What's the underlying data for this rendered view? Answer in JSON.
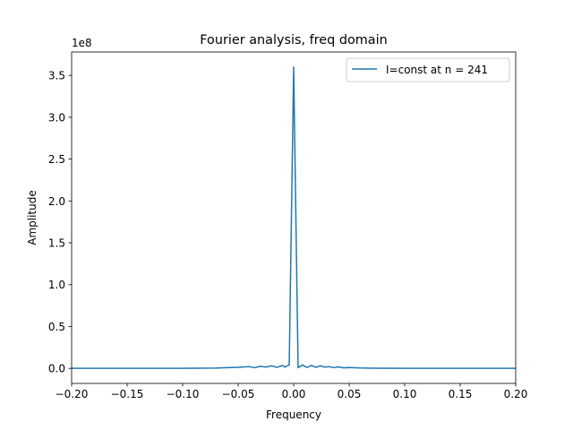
{
  "chart_data": {
    "type": "line",
    "title": "Fourier analysis, freq domain",
    "xlabel": "Frequency",
    "ylabel": "Amplitude",
    "xlim": [
      -0.2,
      0.2
    ],
    "ylim": [
      -0.18,
      3.78
    ],
    "y_scale_label": "1e8",
    "x_ticks": [
      -0.2,
      -0.15,
      -0.1,
      -0.05,
      0.0,
      0.05,
      0.1,
      0.15,
      0.2
    ],
    "x_tick_labels": [
      "−0.20",
      "−0.15",
      "−0.10",
      "−0.05",
      "0.00",
      "0.05",
      "0.10",
      "0.15",
      "0.20"
    ],
    "y_ticks": [
      0.0,
      0.5,
      1.0,
      1.5,
      2.0,
      2.5,
      3.0,
      3.5
    ],
    "y_tick_labels": [
      "0.0",
      "0.5",
      "1.0",
      "1.5",
      "2.0",
      "2.5",
      "3.0",
      "3.5"
    ],
    "grid": false,
    "legend_position": "top-right",
    "series": [
      {
        "name": "I=const at n = 241",
        "color": "#1f77b4",
        "x": [
          -0.2,
          -0.15,
          -0.1,
          -0.07,
          -0.06,
          -0.05,
          -0.04,
          -0.035,
          -0.03,
          -0.025,
          -0.02,
          -0.015,
          -0.01,
          -0.008,
          -0.004,
          0.0,
          0.004,
          0.008,
          0.012,
          0.016,
          0.02,
          0.024,
          0.028,
          0.032,
          0.036,
          0.04,
          0.045,
          0.05,
          0.06,
          0.07,
          0.1,
          0.15,
          0.2
        ],
        "y": [
          0.0,
          0.0,
          0.0,
          0.003,
          0.008,
          0.012,
          0.02,
          0.008,
          0.025,
          0.015,
          0.03,
          0.012,
          0.035,
          0.015,
          0.04,
          3.6,
          0.008,
          0.04,
          0.01,
          0.035,
          0.012,
          0.03,
          0.015,
          0.02,
          0.008,
          0.018,
          0.006,
          0.01,
          0.004,
          0.002,
          0.0,
          0.0,
          0.0
        ]
      }
    ]
  }
}
